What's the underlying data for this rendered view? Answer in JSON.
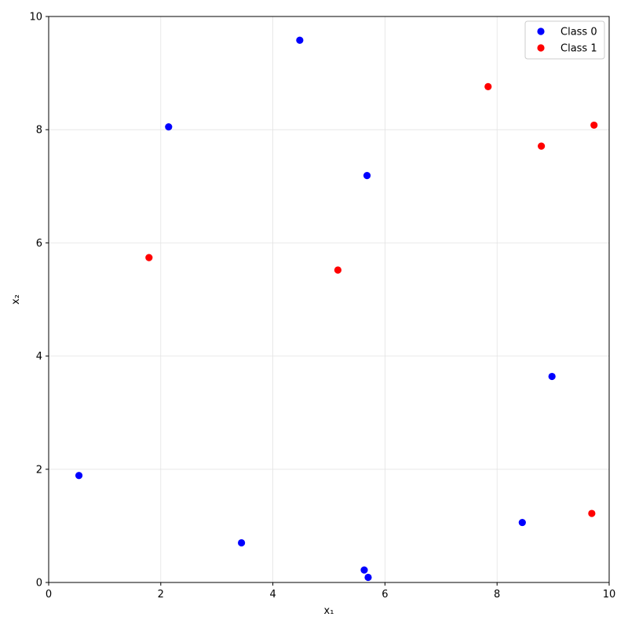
{
  "chart_data": {
    "type": "scatter",
    "title": "",
    "xlabel": "x₁",
    "ylabel": "x₂",
    "xlim": [
      0,
      10
    ],
    "ylim": [
      0,
      10
    ],
    "xticks": [
      0,
      2,
      4,
      6,
      8,
      10
    ],
    "yticks": [
      0,
      2,
      4,
      6,
      8,
      10
    ],
    "grid": true,
    "legend_position": "top-right",
    "series": [
      {
        "name": "Class 0",
        "color": "#0000ff",
        "points": [
          {
            "x": 4.48,
            "y": 9.58
          },
          {
            "x": 2.14,
            "y": 8.05
          },
          {
            "x": 5.68,
            "y": 7.19
          },
          {
            "x": 8.98,
            "y": 3.64
          },
          {
            "x": 0.54,
            "y": 1.89
          },
          {
            "x": 3.44,
            "y": 0.7
          },
          {
            "x": 8.45,
            "y": 1.06
          },
          {
            "x": 5.63,
            "y": 0.22
          },
          {
            "x": 5.7,
            "y": 0.09
          }
        ]
      },
      {
        "name": "Class 1",
        "color": "#ff0000",
        "points": [
          {
            "x": 7.84,
            "y": 8.76
          },
          {
            "x": 9.73,
            "y": 8.08
          },
          {
            "x": 8.79,
            "y": 7.71
          },
          {
            "x": 1.79,
            "y": 5.74
          },
          {
            "x": 5.16,
            "y": 5.52
          },
          {
            "x": 9.69,
            "y": 1.22
          }
        ]
      }
    ]
  }
}
